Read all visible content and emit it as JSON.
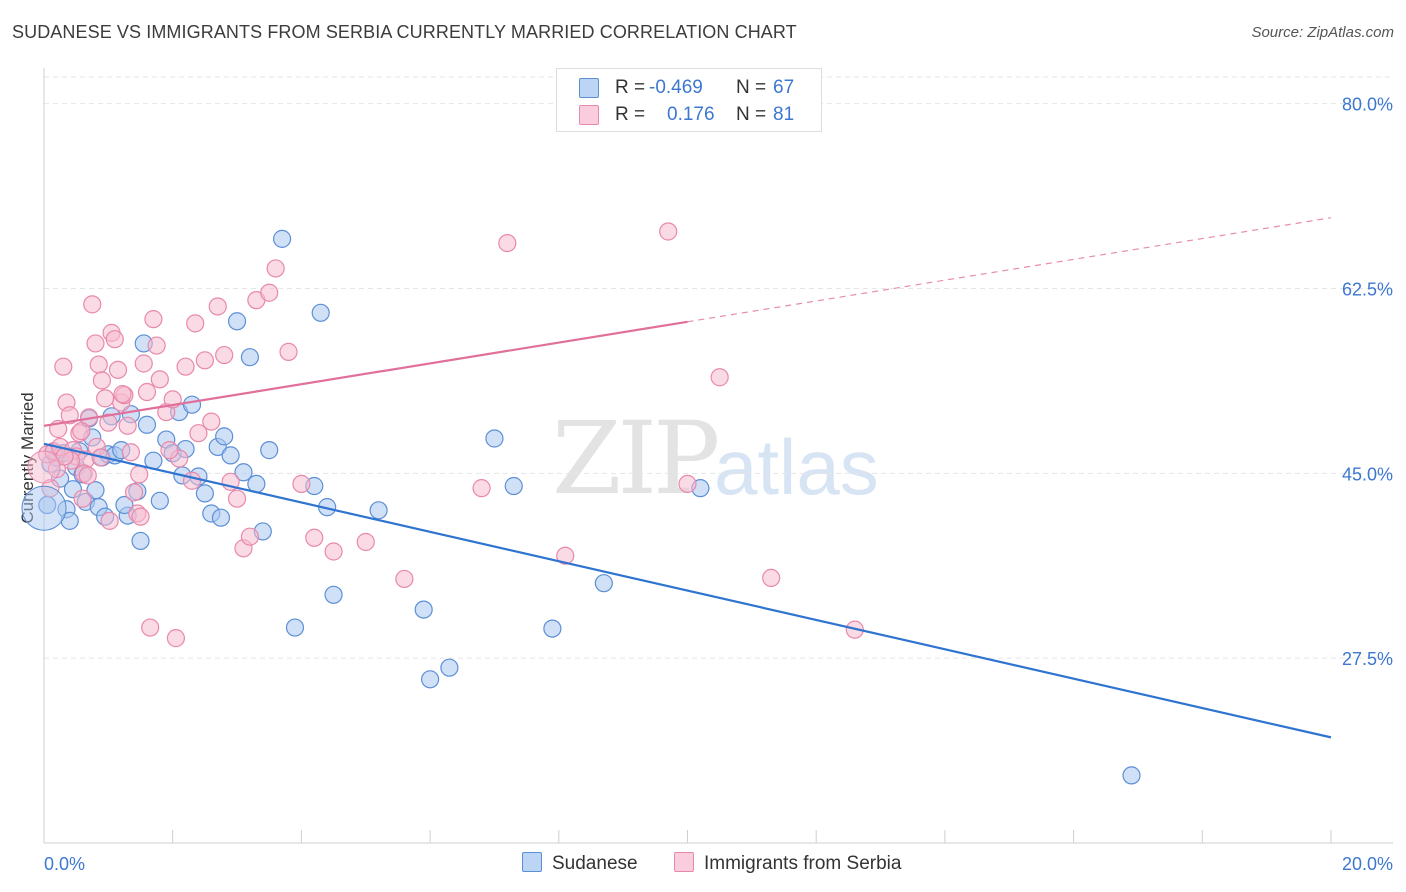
{
  "title": "SUDANESE VS IMMIGRANTS FROM SERBIA CURRENTLY MARRIED CORRELATION CHART",
  "source": "Source: ZipAtlas.com",
  "watermark": {
    "zip": "ZIP",
    "atlas": "atlas"
  },
  "legend_top": {
    "rows": [
      {
        "r_label": "R =",
        "r_value": "-0.469",
        "n_label": "N =",
        "n_value": "67"
      },
      {
        "r_label": "R =",
        "r_value": "0.176",
        "n_label": "N =",
        "n_value": "81"
      }
    ]
  },
  "legend_bottom": {
    "series1": "Sudanese",
    "series2": "Immigrants from Serbia"
  },
  "colors": {
    "blue_fill": "#a9c8f0",
    "blue_stroke": "#5c8fd6",
    "blue_line": "#2f74d0",
    "pink_fill": "#f6bcd0",
    "pink_stroke": "#e889ab",
    "pink_line": "#e0709a",
    "tick_text": "#3d77d0",
    "grid": "#e5e5e5"
  },
  "chart_data": {
    "type": "scatter",
    "title": "SUDANESE VS IMMIGRANTS FROM SERBIA CURRENTLY MARRIED CORRELATION CHART",
    "xlabel": "",
    "ylabel": "Currently Married",
    "xlim": [
      0,
      20
    ],
    "ylim": [
      10,
      83
    ],
    "x_tick_labels": [
      "0.0%",
      "20.0%"
    ],
    "y_ticks": [
      27.5,
      45.0,
      62.5,
      80.0
    ],
    "y_tick_labels": [
      "27.5%",
      "45.0%",
      "62.5%",
      "80.0%"
    ],
    "grid": true,
    "legend_position": "top-center",
    "series": [
      {
        "name": "Sudanese",
        "color": "#5c8fd6",
        "trend": {
          "x": [
            0,
            20
          ],
          "y": [
            47.8,
            20.0
          ],
          "solid_to": 20
        },
        "points": [
          [
            0.05,
            42.0
          ],
          [
            0.1,
            45.9
          ],
          [
            0.15,
            47.0
          ],
          [
            0.2,
            46.5
          ],
          [
            0.25,
            44.5
          ],
          [
            0.3,
            46.9
          ],
          [
            0.35,
            41.6
          ],
          [
            0.4,
            40.5
          ],
          [
            0.5,
            45.6
          ],
          [
            0.55,
            47.1
          ],
          [
            0.6,
            44.9
          ],
          [
            0.65,
            42.3
          ],
          [
            0.7,
            50.2
          ],
          [
            0.75,
            48.4
          ],
          [
            0.8,
            43.4
          ],
          [
            0.9,
            46.5
          ],
          [
            1.0,
            46.8
          ],
          [
            1.1,
            46.7
          ],
          [
            1.2,
            47.2
          ],
          [
            1.3,
            41.0
          ],
          [
            1.35,
            50.6
          ],
          [
            1.45,
            43.3
          ],
          [
            1.5,
            38.6
          ],
          [
            1.6,
            49.6
          ],
          [
            1.7,
            46.2
          ],
          [
            1.8,
            42.4
          ],
          [
            1.9,
            48.2
          ],
          [
            2.0,
            46.9
          ],
          [
            2.1,
            50.8
          ],
          [
            2.2,
            47.3
          ],
          [
            2.3,
            51.5
          ],
          [
            2.4,
            44.7
          ],
          [
            2.5,
            43.1
          ],
          [
            2.6,
            41.2
          ],
          [
            2.7,
            47.5
          ],
          [
            2.8,
            48.5
          ],
          [
            2.9,
            46.7
          ],
          [
            3.0,
            59.4
          ],
          [
            3.1,
            45.1
          ],
          [
            3.2,
            56.0
          ],
          [
            3.5,
            47.2
          ],
          [
            3.7,
            67.2
          ],
          [
            4.5,
            33.5
          ],
          [
            3.9,
            30.4
          ],
          [
            4.2,
            43.8
          ],
          [
            0.85,
            41.8
          ],
          [
            1.25,
            42.0
          ],
          [
            1.55,
            57.3
          ],
          [
            2.75,
            40.8
          ],
          [
            3.4,
            39.5
          ],
          [
            5.2,
            41.5
          ],
          [
            4.4,
            41.8
          ],
          [
            5.9,
            32.1
          ],
          [
            6.0,
            25.5
          ],
          [
            6.3,
            26.6
          ],
          [
            7.0,
            48.3
          ],
          [
            7.3,
            43.8
          ],
          [
            7.9,
            30.3
          ],
          [
            8.7,
            34.6
          ],
          [
            10.2,
            43.6
          ],
          [
            16.9,
            16.4
          ],
          [
            3.3,
            44.0
          ],
          [
            2.15,
            44.8
          ],
          [
            0.95,
            40.9
          ],
          [
            1.05,
            50.4
          ],
          [
            0.45,
            43.5
          ],
          [
            4.3,
            60.2
          ]
        ]
      },
      {
        "name": "Immigrants from Serbia",
        "color": "#e889ab",
        "trend": {
          "x": [
            0,
            20
          ],
          "y": [
            49.5,
            69.2
          ],
          "solid_to": 10
        },
        "points": [
          [
            0.05,
            46.8
          ],
          [
            0.1,
            43.6
          ],
          [
            0.15,
            47.1
          ],
          [
            0.2,
            45.4
          ],
          [
            0.25,
            47.5
          ],
          [
            0.3,
            55.1
          ],
          [
            0.35,
            51.7
          ],
          [
            0.4,
            50.5
          ],
          [
            0.45,
            47.2
          ],
          [
            0.5,
            46.6
          ],
          [
            0.55,
            48.8
          ],
          [
            0.6,
            42.6
          ],
          [
            0.65,
            46.3
          ],
          [
            0.7,
            50.3
          ],
          [
            0.75,
            61.0
          ],
          [
            0.8,
            57.3
          ],
          [
            0.85,
            55.3
          ],
          [
            0.9,
            53.8
          ],
          [
            0.95,
            52.1
          ],
          [
            1.0,
            49.8
          ],
          [
            1.05,
            58.3
          ],
          [
            1.1,
            57.7
          ],
          [
            1.15,
            54.8
          ],
          [
            1.2,
            51.7
          ],
          [
            1.25,
            52.4
          ],
          [
            1.3,
            49.5
          ],
          [
            1.35,
            47.0
          ],
          [
            1.4,
            43.2
          ],
          [
            1.45,
            41.2
          ],
          [
            1.5,
            40.9
          ],
          [
            1.55,
            55.4
          ],
          [
            1.6,
            52.7
          ],
          [
            1.7,
            59.6
          ],
          [
            1.75,
            57.1
          ],
          [
            1.8,
            53.9
          ],
          [
            1.9,
            50.8
          ],
          [
            2.0,
            52.0
          ],
          [
            2.1,
            46.4
          ],
          [
            2.2,
            55.1
          ],
          [
            2.3,
            44.3
          ],
          [
            2.4,
            48.8
          ],
          [
            2.5,
            55.7
          ],
          [
            2.6,
            49.9
          ],
          [
            2.7,
            60.8
          ],
          [
            2.8,
            56.2
          ],
          [
            2.9,
            44.2
          ],
          [
            3.0,
            42.6
          ],
          [
            3.1,
            37.9
          ],
          [
            3.2,
            39.0
          ],
          [
            3.3,
            61.4
          ],
          [
            3.5,
            62.1
          ],
          [
            3.6,
            64.4
          ],
          [
            3.8,
            56.5
          ],
          [
            4.0,
            44.0
          ],
          [
            4.2,
            38.9
          ],
          [
            4.5,
            37.6
          ],
          [
            5.0,
            38.5
          ],
          [
            5.6,
            35.0
          ],
          [
            6.8,
            43.6
          ],
          [
            7.2,
            66.8
          ],
          [
            8.1,
            37.2
          ],
          [
            9.7,
            67.9
          ],
          [
            10.0,
            44.0
          ],
          [
            10.5,
            54.1
          ],
          [
            11.3,
            35.1
          ],
          [
            12.6,
            30.2
          ],
          [
            2.05,
            29.4
          ],
          [
            1.65,
            30.4
          ],
          [
            0.62,
            45.0
          ],
          [
            0.82,
            47.5
          ],
          [
            0.68,
            44.8
          ],
          [
            1.22,
            52.5
          ],
          [
            0.42,
            46.2
          ],
          [
            0.88,
            46.5
          ],
          [
            0.32,
            46.6
          ],
          [
            0.58,
            49.0
          ],
          [
            1.02,
            40.5
          ],
          [
            1.48,
            44.9
          ],
          [
            1.95,
            47.2
          ],
          [
            2.35,
            59.2
          ],
          [
            0.22,
            49.2
          ]
        ]
      }
    ]
  }
}
